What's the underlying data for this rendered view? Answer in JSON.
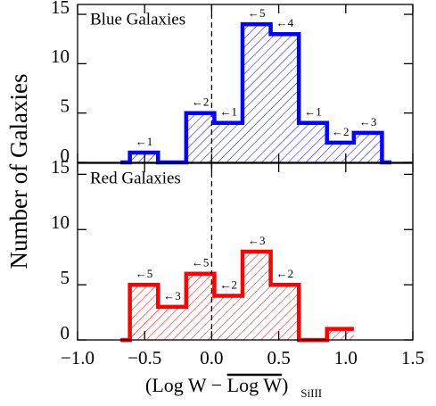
{
  "chart_data": [
    {
      "type": "histogram",
      "title": "Blue Galaxies",
      "color": "#0000ff",
      "ylabel": "Number of Galaxies",
      "bins": [
        -0.68,
        -0.61,
        -0.4,
        -0.19,
        0.02,
        0.23,
        0.44,
        0.65,
        0.86,
        1.06,
        1.27,
        1.34
      ],
      "counts": [
        0,
        1,
        0,
        5,
        4,
        14,
        13,
        4,
        2,
        3,
        0
      ],
      "annotations": [
        null,
        "←1",
        null,
        "←2",
        "←1",
        "←5",
        "←4",
        "←1",
        "←2",
        "←3",
        null
      ],
      "xlim": [
        -1.0,
        1.5
      ],
      "ylim": [
        0,
        16
      ],
      "yticks": [
        0,
        5,
        10,
        15
      ],
      "xticks": [
        -1.0,
        -0.5,
        0,
        0.5,
        1.0,
        1.5
      ],
      "vline": 0
    },
    {
      "type": "histogram",
      "title": "Red Galaxies",
      "color": "#ff0000",
      "bins": [
        -0.68,
        -0.61,
        -0.4,
        -0.19,
        0.02,
        0.23,
        0.44,
        0.65,
        0.86,
        1.06
      ],
      "counts": [
        0,
        5,
        3,
        6,
        4,
        8,
        5,
        0,
        1
      ],
      "annotations": [
        null,
        "←5",
        "←3",
        "←5",
        "←2",
        "←3",
        "←2",
        null,
        null
      ],
      "xlim": [
        -1.0,
        1.5
      ],
      "ylim": [
        0,
        16
      ],
      "yticks": [
        0,
        5,
        10,
        15
      ],
      "xticks": [
        {
          "value": -1.0,
          "label": "−1.0"
        },
        {
          "value": -0.5,
          "label": "−0.5"
        },
        {
          "value": 0,
          "label": "0.0"
        },
        {
          "value": 0.5,
          "label": "0.5"
        },
        {
          "value": 1.0,
          "label": "1.0"
        },
        {
          "value": 1.5,
          "label": "1.5"
        }
      ],
      "xlabel": [
        "(Log W − ",
        "Log W",
        ")"
      ],
      "xlabel_sub": "SiIII",
      "vline": 0
    }
  ]
}
